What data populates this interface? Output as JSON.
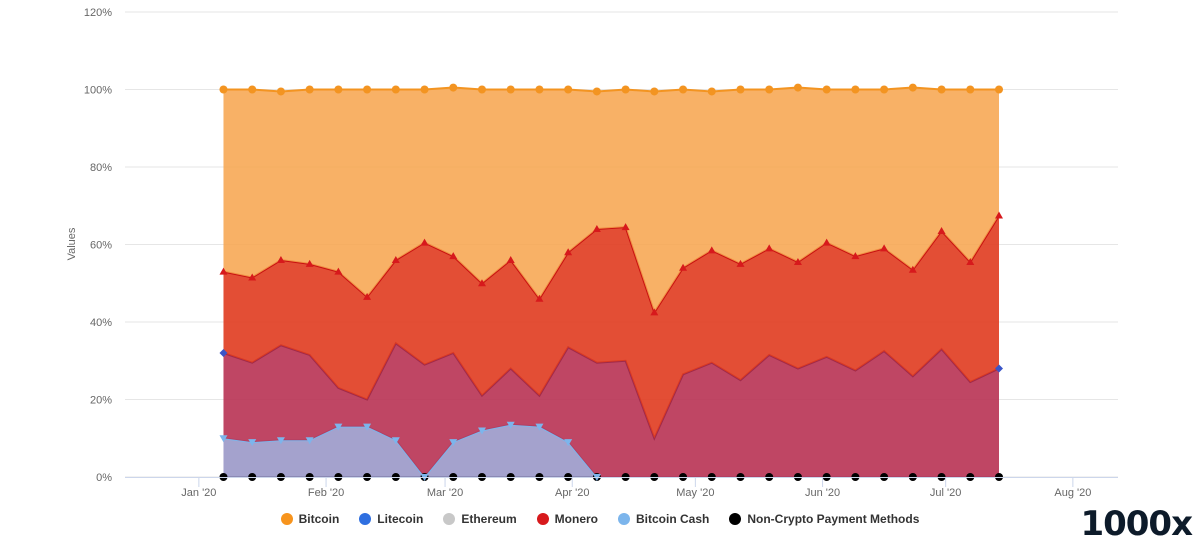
{
  "brand": "1000x",
  "chart_data": {
    "type": "area",
    "stacking": "percent",
    "ylabel": "Values",
    "ylim": [
      0,
      120
    ],
    "yticks": [
      "0%",
      "20%",
      "40%",
      "60%",
      "80%",
      "100%",
      "120%"
    ],
    "ytick_values": [
      0,
      20,
      40,
      60,
      80,
      100,
      120
    ],
    "xlim": [
      "2019-12-14",
      "2020-08-12"
    ],
    "xticks": [
      "Jan '20",
      "Feb '20",
      "Mar '20",
      "Apr '20",
      "May '20",
      "Jun '20",
      "Jul '20",
      "Aug '20"
    ],
    "xtick_dates": [
      "2020-01-01",
      "2020-02-01",
      "2020-03-01",
      "2020-04-01",
      "2020-05-01",
      "2020-06-01",
      "2020-07-01",
      "2020-08-01"
    ],
    "x": [
      "2020-01-07",
      "2020-01-14",
      "2020-01-21",
      "2020-01-28",
      "2020-02-04",
      "2020-02-11",
      "2020-02-18",
      "2020-02-25",
      "2020-03-03",
      "2020-03-10",
      "2020-03-17",
      "2020-03-24",
      "2020-03-31",
      "2020-04-07",
      "2020-04-14",
      "2020-04-21",
      "2020-04-28",
      "2020-05-05",
      "2020-05-12",
      "2020-05-19",
      "2020-05-26",
      "2020-06-02",
      "2020-06-09",
      "2020-06-16",
      "2020-06-23",
      "2020-06-30",
      "2020-07-07",
      "2020-07-14"
    ],
    "grid": true,
    "legend_position": "bottom",
    "series": [
      {
        "name": "Bitcoin",
        "color": "#f7a34b",
        "marker": "circle",
        "legend_color": "#f7941d",
        "values": [
          47,
          48.5,
          43.5,
          45,
          47,
          53.5,
          44,
          39.5,
          43.5,
          50,
          44,
          54,
          42,
          35.5,
          35.5,
          57,
          46,
          41,
          45,
          41,
          45,
          39.5,
          43,
          41,
          47,
          36.5,
          44.5,
          32.5
        ]
      },
      {
        "name": "Monero",
        "color": "#e03b1f",
        "marker": "triangle",
        "legend_color": "#d7191c",
        "values": [
          21,
          22,
          22,
          23.5,
          30,
          26.5,
          21.5,
          31.5,
          25,
          29,
          28,
          25,
          24.5,
          34.5,
          34.5,
          32.5,
          27.5,
          29,
          30,
          27.5,
          27.5,
          29.5,
          29.5,
          26.5,
          27.5,
          30.5,
          31,
          39.5
        ]
      },
      {
        "name": "Litecoin",
        "color": "#b83253",
        "marker": "diamond",
        "legend_color": "#2f7ed8",
        "values": [
          22,
          20.5,
          24.5,
          22,
          10,
          7,
          25,
          29,
          23,
          9,
          14.5,
          8,
          24.5,
          29.5,
          30,
          10,
          26.5,
          29.5,
          25,
          31.5,
          28,
          31,
          27.5,
          32.5,
          26,
          33,
          24.5,
          28
        ]
      },
      {
        "name": "Bitcoin Cash",
        "color": "#9a98c8",
        "marker": "triangle-down",
        "legend_color": "#7cb5ec",
        "values": [
          10,
          9,
          9.5,
          9.5,
          13,
          13,
          9.5,
          0,
          9,
          12,
          13.5,
          13,
          9,
          0,
          0,
          0,
          0,
          0,
          0,
          0,
          0,
          0,
          0,
          0,
          0,
          0,
          0,
          0
        ]
      },
      {
        "name": "Ethereum",
        "color": "#cccccc",
        "marker": "none",
        "legend_color": "#c8c8c8",
        "values": [
          0,
          0,
          0,
          0,
          0,
          0,
          0,
          0,
          0,
          0,
          0,
          0,
          0,
          0,
          0,
          0,
          0,
          0,
          0,
          0,
          0,
          0,
          0,
          0,
          0,
          0,
          0,
          0
        ]
      },
      {
        "name": "Non-Crypto Payment Methods",
        "color": "#000000",
        "marker": "circle",
        "legend_color": "#000000",
        "values": [
          0,
          0,
          0,
          0,
          0,
          0,
          0,
          0,
          0,
          0,
          0,
          0,
          0,
          0,
          0,
          0,
          0,
          0,
          0,
          0,
          0,
          0,
          0,
          0,
          0,
          0,
          0,
          0
        ]
      }
    ],
    "legend": [
      {
        "name": "Bitcoin",
        "color": "#f7941d"
      },
      {
        "name": "Litecoin",
        "color": "#2f6fe0"
      },
      {
        "name": "Ethereum",
        "color": "#c8c8c8"
      },
      {
        "name": "Monero",
        "color": "#d7191c"
      },
      {
        "name": "Bitcoin Cash",
        "color": "#7cb5ec"
      },
      {
        "name": "Non-Crypto Payment Methods",
        "color": "#000000"
      }
    ]
  }
}
